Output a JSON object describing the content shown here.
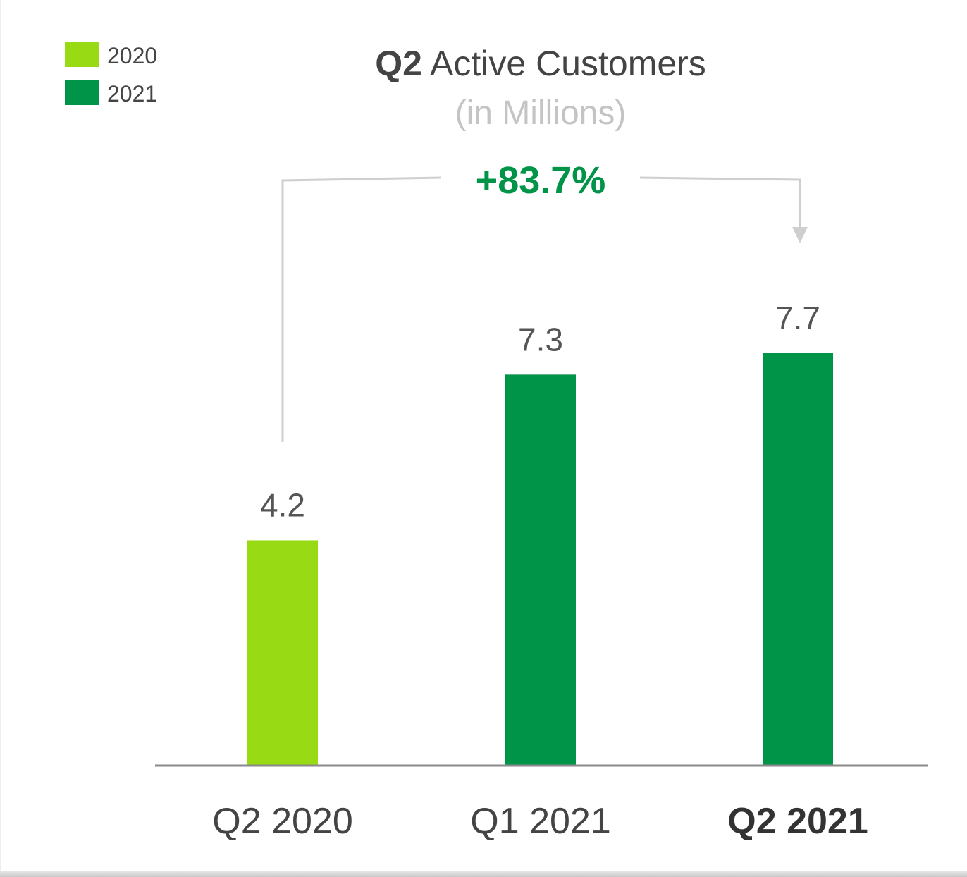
{
  "chart_data": {
    "type": "bar",
    "title_bold": "Q2",
    "title_rest": " Active Customers",
    "subtitle": "(in Millions)",
    "categories": [
      "Q2 2020",
      "Q1 2021",
      "Q2 2021"
    ],
    "values": [
      4.2,
      7.3,
      7.7
    ],
    "value_labels": [
      "4.2",
      "7.3",
      "7.7"
    ],
    "series_of_bar": [
      "2020",
      "2021",
      "2021"
    ],
    "legend": [
      {
        "label": "2020",
        "color": "#98DA14"
      },
      {
        "label": "2021",
        "color": "#009448"
      }
    ],
    "legend_position": "top-left",
    "annotation": "+83.7%",
    "annotation_color": "#009448",
    "highlighted_category": "Q2 2021",
    "ylim": [
      0,
      7.7
    ],
    "grid": false,
    "xlabel": "",
    "ylabel": ""
  }
}
